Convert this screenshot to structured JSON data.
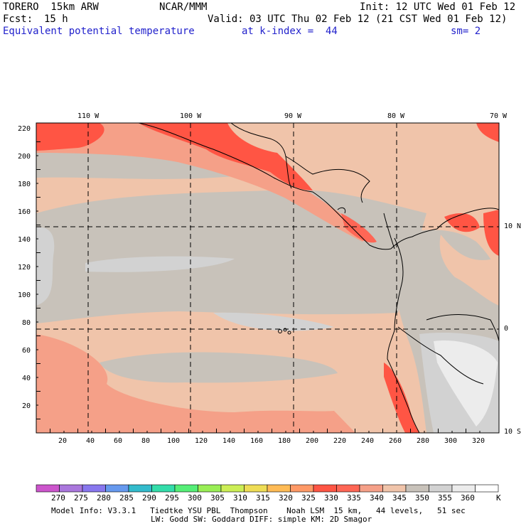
{
  "header": {
    "model": "TORERO  15km ARW",
    "center": "NCAR/MMM",
    "init": "Init: 12 UTC Wed 01 Feb 12",
    "fcst_label": "Fcst:",
    "fcst_value": "15 h",
    "valid": "Valid: 03 UTC Thu 02 Feb 12 (21 CST Wed 01 Feb 12)",
    "field": "Equivalent potential temperature",
    "level": "at k-index =  44",
    "smooth": "sm= 2"
  },
  "map": {
    "top_longitudes": [
      "110 W",
      "100 W",
      "90 W",
      "80 W",
      "70 W"
    ],
    "right_latitudes": [
      "10 N",
      "0",
      "10 S"
    ],
    "y_ticks": [
      "220",
      "200",
      "180",
      "160",
      "140",
      "120",
      "100",
      "80",
      "60",
      "40",
      "20"
    ],
    "x_ticks": [
      "20",
      "40",
      "60",
      "80",
      "100",
      "120",
      "140",
      "160",
      "180",
      "200",
      "220",
      "240",
      "260",
      "280",
      "300",
      "320"
    ]
  },
  "colorbar": {
    "labels": [
      "270",
      "275",
      "280",
      "285",
      "290",
      "295",
      "300",
      "305",
      "310",
      "315",
      "320",
      "325",
      "330",
      "335",
      "340",
      "345",
      "350",
      "355",
      "360"
    ],
    "unit": "K",
    "colors": [
      "#cc55cc",
      "#aa77dd",
      "#8877ee",
      "#6699ee",
      "#33bbcc",
      "#33ddaa",
      "#55ee77",
      "#99ee55",
      "#ccee55",
      "#eedd55",
      "#ffbb55",
      "#ff9966",
      "#ff5544",
      "#ff6655",
      "#f5a088",
      "#f0c4aa",
      "#c8c2ba",
      "#d2d2d2",
      "#ececec",
      "#ffffff"
    ]
  },
  "footer": {
    "line1": "Model Info: V3.3.1   Tiedtke YSU PBL  Thompson    Noah LSM  15 km,   44 levels,   51 sec",
    "line2": "LW: Godd SW: Goddard DIFF: simple KM: 2D Smagor"
  }
}
